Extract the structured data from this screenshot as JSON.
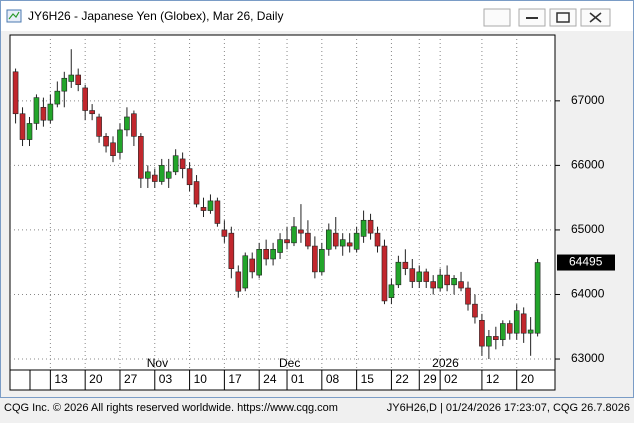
{
  "window_title": "JY6H26 - Japanese Yen (Globex), Mar 26, Daily",
  "chart_data": {
    "type": "candlestick",
    "candles": [
      [
        67450,
        67500,
        66650,
        66800
      ],
      [
        66800,
        66900,
        66300,
        66400
      ],
      [
        66400,
        66750,
        66300,
        66650
      ],
      [
        66650,
        67100,
        66550,
        67050
      ],
      [
        66900,
        67050,
        66600,
        66700
      ],
      [
        66700,
        67100,
        66650,
        66950
      ],
      [
        66950,
        67300,
        66900,
        67150
      ],
      [
        67150,
        67450,
        66900,
        67350
      ],
      [
        67300,
        67800,
        67200,
        67400
      ],
      [
        67400,
        67500,
        67150,
        67250
      ],
      [
        67200,
        67250,
        66700,
        66850
      ],
      [
        66850,
        66950,
        66700,
        66800
      ],
      [
        66750,
        66800,
        66350,
        66450
      ],
      [
        66450,
        66500,
        66200,
        66300
      ],
      [
        66350,
        66450,
        66050,
        66150
      ],
      [
        66200,
        66650,
        66100,
        66550
      ],
      [
        66550,
        66900,
        66450,
        66750
      ],
      [
        66800,
        66850,
        66300,
        66450
      ],
      [
        66450,
        66500,
        65650,
        65800
      ],
      [
        65800,
        66000,
        65650,
        65900
      ],
      [
        65850,
        65950,
        65650,
        65750
      ],
      [
        65750,
        66100,
        65700,
        66000
      ],
      [
        65800,
        66100,
        65650,
        65900
      ],
      [
        65900,
        66250,
        65850,
        66150
      ],
      [
        66100,
        66200,
        65800,
        65950
      ],
      [
        65950,
        66050,
        65600,
        65700
      ],
      [
        65750,
        65850,
        65350,
        65400
      ],
      [
        65350,
        65500,
        65200,
        65300
      ],
      [
        65300,
        65550,
        65250,
        65450
      ],
      [
        65450,
        65500,
        65050,
        65100
      ],
      [
        65000,
        65150,
        64800,
        64900
      ],
      [
        64950,
        65050,
        64250,
        64400
      ],
      [
        64350,
        64450,
        63950,
        64050
      ],
      [
        64100,
        64650,
        64050,
        64600
      ],
      [
        64550,
        64650,
        64250,
        64350
      ],
      [
        64300,
        64800,
        64250,
        64700
      ],
      [
        64700,
        64850,
        64450,
        64550
      ],
      [
        64550,
        64800,
        64450,
        64700
      ],
      [
        64650,
        64950,
        64550,
        64850
      ],
      [
        64850,
        65050,
        64700,
        64800
      ],
      [
        64800,
        65200,
        64750,
        65050
      ],
      [
        65000,
        65400,
        64800,
        64950
      ],
      [
        64950,
        65150,
        64700,
        64750
      ],
      [
        64750,
        64900,
        64250,
        64350
      ],
      [
        64350,
        64800,
        64300,
        64700
      ],
      [
        64700,
        65100,
        64600,
        65000
      ],
      [
        64950,
        65200,
        64700,
        64750
      ],
      [
        64750,
        64950,
        64600,
        64850
      ],
      [
        64800,
        64950,
        64650,
        64750
      ],
      [
        64700,
        65050,
        64650,
        64950
      ],
      [
        64900,
        65300,
        64800,
        65150
      ],
      [
        65150,
        65250,
        64850,
        64950
      ],
      [
        64950,
        65050,
        64650,
        64750
      ],
      [
        64750,
        64850,
        63850,
        63900
      ],
      [
        63950,
        64250,
        63850,
        64150
      ],
      [
        64150,
        64600,
        64100,
        64500
      ],
      [
        64500,
        64700,
        64300,
        64400
      ],
      [
        64400,
        64550,
        64100,
        64200
      ],
      [
        64200,
        64450,
        64100,
        64350
      ],
      [
        64350,
        64400,
        64100,
        64200
      ],
      [
        64200,
        64300,
        64000,
        64100
      ],
      [
        64100,
        64400,
        64050,
        64300
      ],
      [
        64300,
        64450,
        64050,
        64150
      ],
      [
        64150,
        64300,
        64000,
        64250
      ],
      [
        64200,
        64350,
        64050,
        64100
      ],
      [
        64100,
        64200,
        63750,
        63850
      ],
      [
        63850,
        64000,
        63550,
        63650
      ],
      [
        63600,
        63700,
        63050,
        63200
      ],
      [
        63200,
        63450,
        63000,
        63350
      ],
      [
        63350,
        63500,
        63150,
        63300
      ],
      [
        63300,
        63600,
        63200,
        63550
      ],
      [
        63550,
        63600,
        63300,
        63400
      ],
      [
        63400,
        63850,
        63300,
        63750
      ],
      [
        63700,
        63800,
        63250,
        63400
      ],
      [
        63400,
        63650,
        63050,
        63450
      ],
      [
        63400,
        64550,
        63350,
        64495
      ]
    ],
    "up_color": "#22a52a",
    "down_color": "#c1272d",
    "xlim": [
      -0.8,
      77.5
    ],
    "xticks": [
      {
        "value": 5,
        "label": "13"
      },
      {
        "value": 10,
        "label": "20"
      },
      {
        "value": 15,
        "label": "27"
      },
      {
        "value": 20,
        "label": "03"
      },
      {
        "value": 25,
        "label": "10"
      },
      {
        "value": 30,
        "label": "17"
      },
      {
        "value": 35,
        "label": "24"
      },
      {
        "value": 39,
        "label": "01"
      },
      {
        "value": 44,
        "label": "08"
      },
      {
        "value": 49,
        "label": "15"
      },
      {
        "value": 54,
        "label": "22"
      },
      {
        "value": 58,
        "label": "29"
      },
      {
        "value": 61,
        "label": "02"
      },
      {
        "value": 67,
        "label": "12"
      },
      {
        "value": 72,
        "label": "20"
      }
    ],
    "month_labels": [
      {
        "value": 20,
        "label": "Nov"
      },
      {
        "value": 39,
        "label": "Dec"
      },
      {
        "value": 61,
        "label": "2026"
      }
    ],
    "ylim": [
      62830,
      68020
    ],
    "yticks": [
      63000,
      64000,
      65000,
      66000,
      67000
    ],
    "grid": true
  },
  "footer": {
    "left": "CQG Inc. © 2026 All rights reserved worldwide. https://www.cqg.com",
    "right": "JY6H26,D | 01/24/2026 17:23:07, CQG 26.7.8026"
  }
}
